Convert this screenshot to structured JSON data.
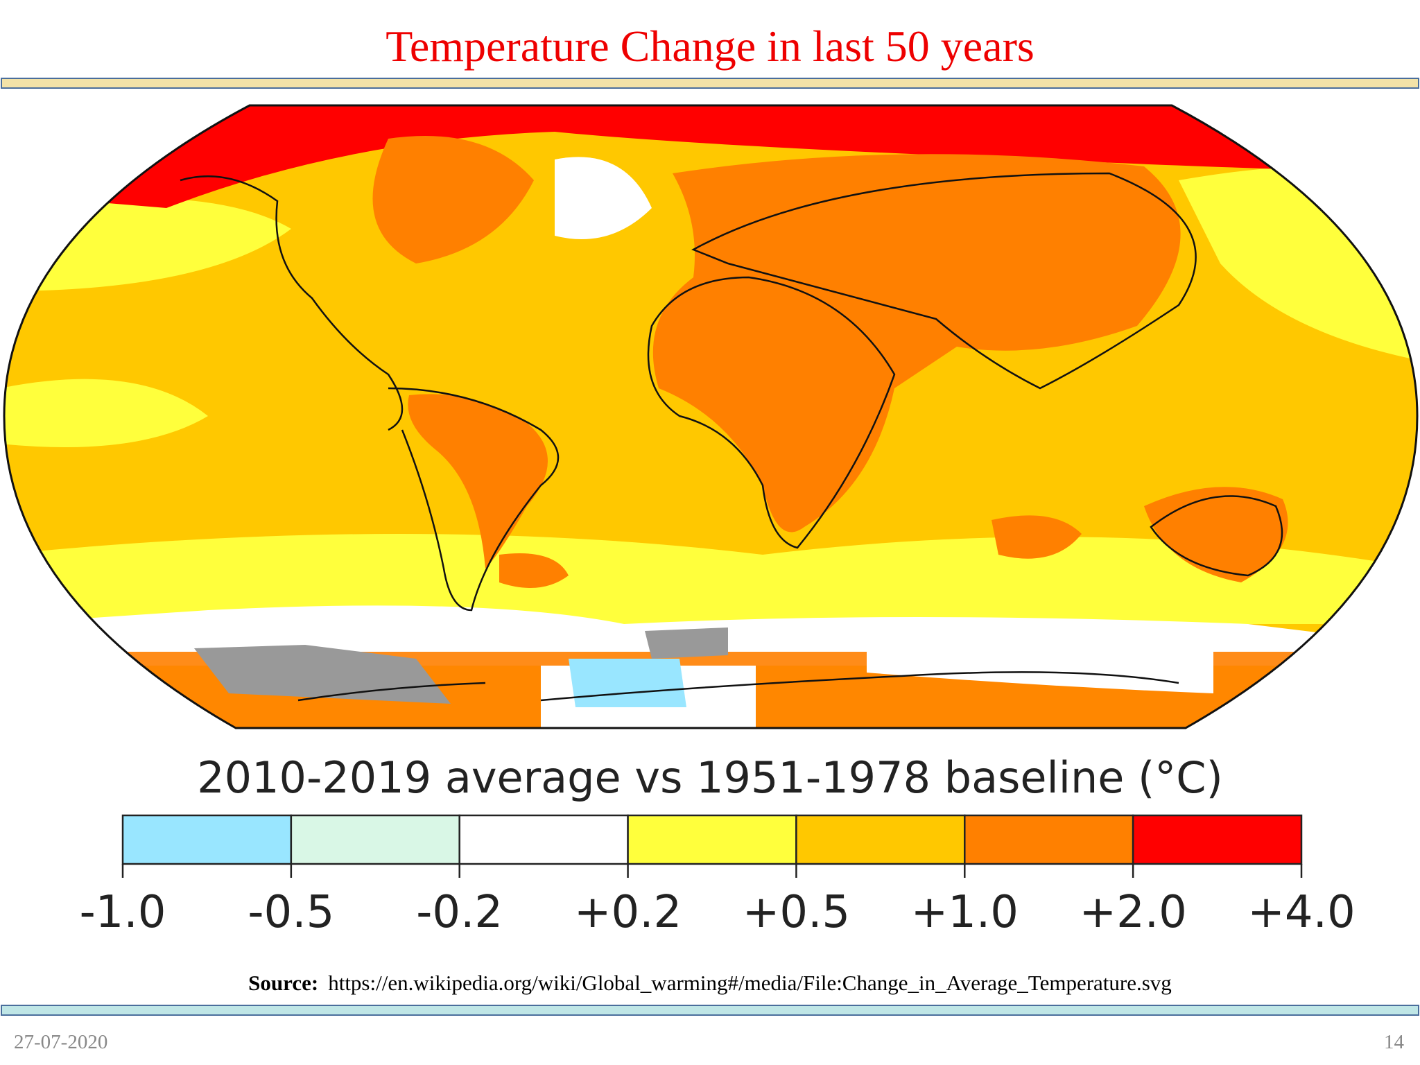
{
  "header": {
    "title": "Temperature Change in last 50 years"
  },
  "legend": {
    "title": "2010-2019 average vs 1951-1978 baseline (°C)",
    "ticks": [
      "-1.0",
      "-0.5",
      "-0.2",
      "+0.2",
      "+0.5",
      "+1.0",
      "+2.0",
      "+4.0"
    ],
    "colors": [
      "#99e6ff",
      "#d9f7e6",
      "#ffffff",
      "#ffff3c",
      "#ffc800",
      "#ff8000",
      "#ff0000"
    ]
  },
  "source": {
    "label": "Source:",
    "url": "https://en.wikipedia.org/wiki/Global_warming#/media/File:Change_in_Average_Temperature.svg"
  },
  "footer": {
    "date": "27-07-2020",
    "page": "14"
  }
}
